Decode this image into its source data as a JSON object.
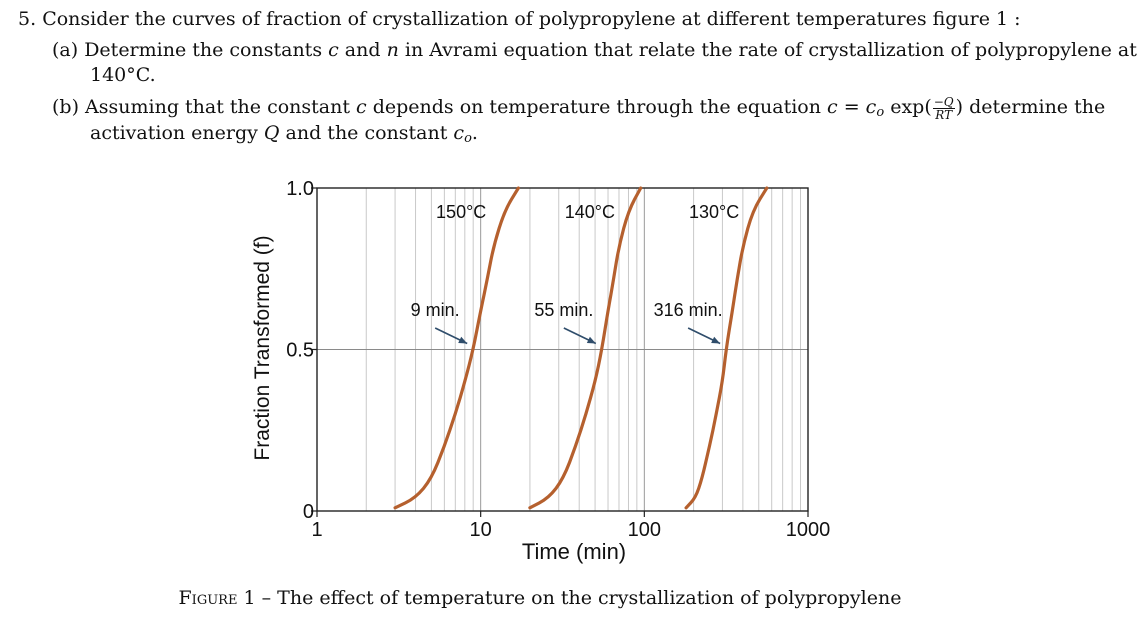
{
  "problem": {
    "number": "5.",
    "intro": "Consider the curves of fraction of crystallization of polypropylene at different temperatures figure 1 :",
    "part_a": {
      "label": "(a)",
      "line1_pre": "Determine the constants ",
      "var_c": "c",
      "and": " and ",
      "var_n": "n",
      "line1_post": " in Avrami equation that relate the rate of crystallization of polypropylene at",
      "line2": "140°C."
    },
    "part_b": {
      "label": "(b)",
      "line1_pre": "Assuming that the constant ",
      "var_c": "c",
      "line1_mid": " depends on temperature through the equation ",
      "eq_lhs": "c",
      "eq_sign": " = ",
      "eq_c0": "c",
      "eq_c0_sub": "o",
      "eq_exp": " exp(",
      "frac_num": "−Q",
      "frac_den": "RT",
      "eq_close": ")",
      "line1_post": " determine the",
      "line2_pre": "activation energy ",
      "var_Q": "Q",
      "line2_mid": " and the constant ",
      "var_c0": "c",
      "var_c0_sub": "o",
      "line2_post": "."
    }
  },
  "figure": {
    "caption_label": "Figure 1",
    "caption_sep": " – ",
    "caption_text": "The effect of temperature on the crystallization of polypropylene"
  },
  "chart_data": {
    "type": "line",
    "xscale": "log",
    "xlim": [
      1,
      1000
    ],
    "ylim": [
      0,
      1
    ],
    "xlabel": "Time (min)",
    "ylabel": "Fraction Transformed (f)",
    "x_ticks": [
      "1",
      "10",
      "100",
      "1000"
    ],
    "y_ticks": [
      "0",
      "0.5",
      "1.0"
    ],
    "grid": true,
    "line_color": "#b5602e",
    "series": [
      {
        "name": "150°C",
        "half_time_label": "9 min.",
        "x": [
          3,
          4,
          5,
          6,
          7,
          8,
          9,
          10,
          11,
          12,
          14,
          17
        ],
        "y": [
          0.01,
          0.04,
          0.1,
          0.2,
          0.3,
          0.4,
          0.5,
          0.62,
          0.72,
          0.82,
          0.93,
          1.0
        ]
      },
      {
        "name": "140°C",
        "half_time_label": "55 min.",
        "x": [
          20,
          26,
          32,
          38,
          44,
          50,
          55,
          60,
          65,
          70,
          80,
          95
        ],
        "y": [
          0.01,
          0.04,
          0.1,
          0.2,
          0.3,
          0.4,
          0.5,
          0.62,
          0.72,
          0.82,
          0.93,
          1.0
        ]
      },
      {
        "name": "130°C",
        "half_time_label": "316 min.",
        "x": [
          180,
          205,
          225,
          250,
          275,
          300,
          316,
          345,
          370,
          400,
          460,
          560
        ],
        "y": [
          0.01,
          0.04,
          0.1,
          0.2,
          0.3,
          0.4,
          0.5,
          0.62,
          0.72,
          0.82,
          0.93,
          1.0
        ]
      }
    ]
  }
}
